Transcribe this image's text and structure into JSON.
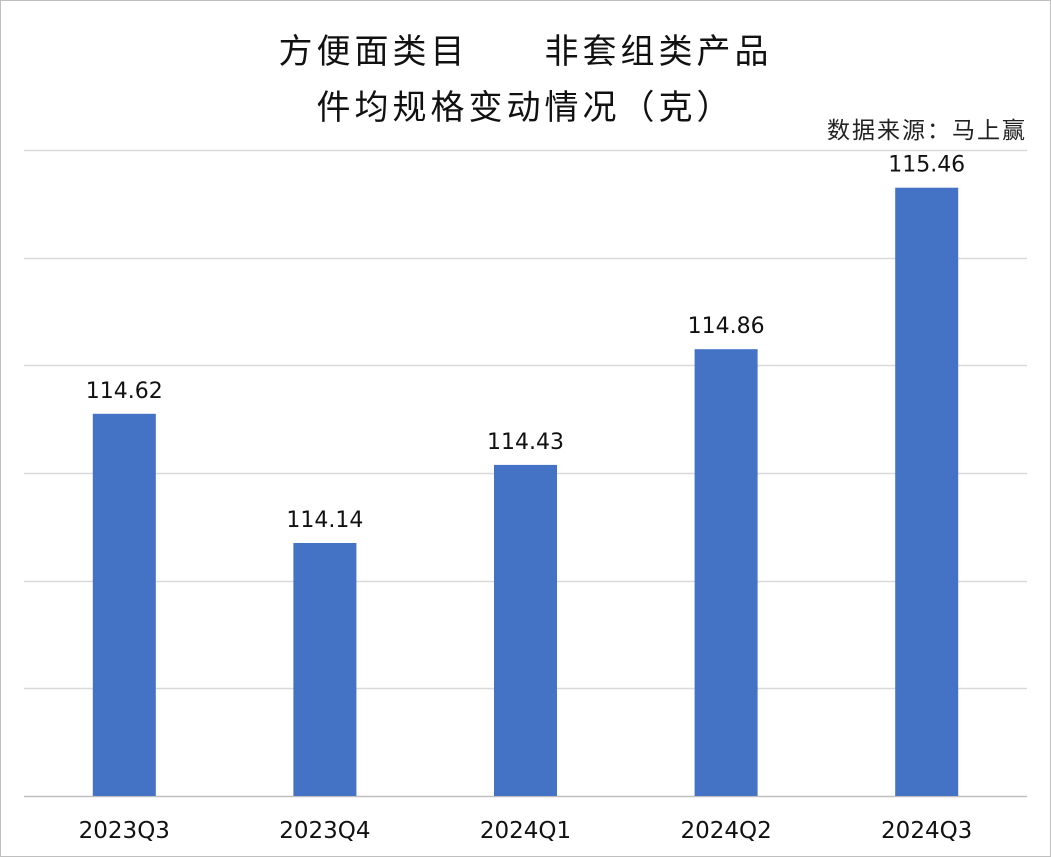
{
  "title_line1": "方便面类目　　非套组类产品",
  "title_line2": "件均规格变动情况（克）",
  "source_note": "数据来源：马上赢",
  "colors": {
    "bar": "#4472c4",
    "grid": "#d9d9d9",
    "axis": "#bfbfbf"
  },
  "chart_data": {
    "type": "bar",
    "categories": [
      "2023Q3",
      "2023Q4",
      "2024Q1",
      "2024Q2",
      "2024Q3"
    ],
    "values": [
      114.62,
      114.14,
      114.43,
      114.86,
      115.46
    ],
    "value_labels": [
      "114.62",
      "114.14",
      "114.43",
      "114.86",
      "115.46"
    ],
    "ylim": [
      113.2,
      115.6
    ],
    "grid_step": 0.4,
    "grid": true,
    "legend": "none"
  }
}
